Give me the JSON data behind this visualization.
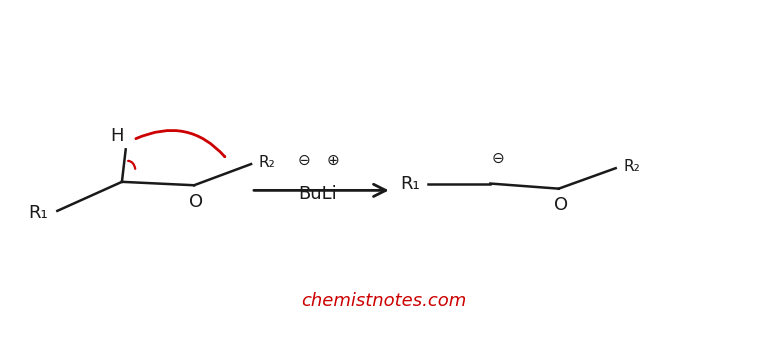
{
  "bg_color": "#ffffff",
  "line_color": "#1a1a1a",
  "red_color": "#cc0000",
  "watermark_color": "#cc0000",
  "watermark_text": "chemistnotes.com",
  "watermark_fontsize": 13,
  "reactant": {
    "R1_label": "R₁",
    "R2_label": "R₂",
    "H_label": "H",
    "O_label": "O"
  },
  "reagent": {
    "minus_label": "⊖",
    "plus_label": "⊕",
    "buli_label": "BuLi"
  },
  "product": {
    "R1_label": "R₁",
    "R2_label": "R₂",
    "O_label": "O",
    "minus_label": "⊖"
  }
}
